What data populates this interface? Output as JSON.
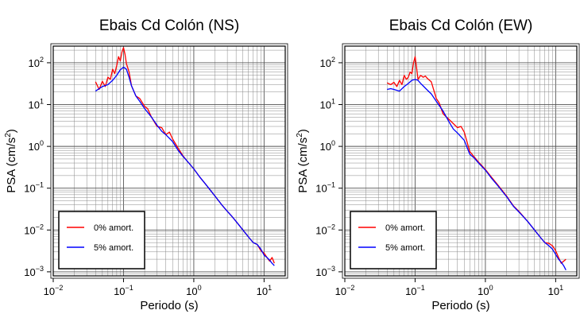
{
  "chart_data": [
    {
      "type": "line",
      "title": "Ebais Cd Colón (NS)",
      "xlabel": "Periodo (s)",
      "ylabel": "PSA (cm/s²)",
      "xscale": "log",
      "yscale": "log",
      "xlim": [
        0.01,
        20
      ],
      "ylim": [
        0.0008,
        250
      ],
      "xticks": [
        0.01,
        0.1,
        1,
        10
      ],
      "yticks": [
        0.001,
        0.01,
        0.1,
        1,
        10,
        100
      ],
      "grid": true,
      "legend_position": "bottom-left",
      "series": [
        {
          "name": "0% amort.",
          "color": "#ff0000",
          "x": [
            0.04,
            0.045,
            0.05,
            0.055,
            0.06,
            0.065,
            0.07,
            0.075,
            0.08,
            0.085,
            0.09,
            0.095,
            0.1,
            0.105,
            0.11,
            0.12,
            0.13,
            0.15,
            0.17,
            0.2,
            0.22,
            0.25,
            0.3,
            0.35,
            0.4,
            0.45,
            0.5,
            0.6,
            0.7,
            0.8,
            1.0,
            1.2,
            1.5,
            2.0,
            2.5,
            3.0,
            3.5,
            4.0,
            5.0,
            6.0,
            7.0,
            8.0,
            9.0,
            10.0,
            11.0,
            12.0,
            13.0,
            14.0
          ],
          "y": [
            35,
            23,
            36,
            27,
            45,
            40,
            70,
            55,
            85,
            140,
            110,
            180,
            230,
            160,
            95,
            60,
            28,
            16,
            14,
            9,
            8,
            5,
            3,
            2.8,
            1.9,
            2.2,
            1.5,
            0.9,
            0.6,
            0.45,
            0.29,
            0.19,
            0.12,
            0.065,
            0.04,
            0.028,
            0.021,
            0.016,
            0.01,
            0.0068,
            0.005,
            0.0045,
            0.0032,
            0.0028,
            0.0022,
            0.0018,
            0.0022,
            0.0016
          ]
        },
        {
          "name": "5% amort.",
          "color": "#0000ff",
          "x": [
            0.04,
            0.045,
            0.05,
            0.06,
            0.07,
            0.08,
            0.09,
            0.1,
            0.11,
            0.12,
            0.13,
            0.15,
            0.17,
            0.2,
            0.25,
            0.3,
            0.35,
            0.4,
            0.5,
            0.6,
            0.7,
            0.8,
            1.0,
            1.2,
            1.5,
            2.0,
            2.5,
            3.0,
            3.5,
            4.0,
            5.0,
            6.0,
            7.0,
            8.0,
            9.0,
            10.0,
            11.0,
            12.0,
            13.0,
            14.0
          ],
          "y": [
            21,
            24,
            27,
            30,
            38,
            50,
            68,
            78,
            70,
            45,
            28,
            16,
            12,
            8,
            5,
            3.2,
            2.3,
            1.9,
            1.3,
            0.8,
            0.58,
            0.45,
            0.29,
            0.19,
            0.12,
            0.065,
            0.04,
            0.028,
            0.021,
            0.016,
            0.01,
            0.0068,
            0.005,
            0.0045,
            0.0035,
            0.0025,
            0.0022,
            0.0019,
            0.0016,
            0.0014
          ]
        }
      ]
    },
    {
      "type": "line",
      "title": "Ebais Cd Colón (EW)",
      "xlabel": "Periodo (s)",
      "ylabel": "PSA (cm/s²)",
      "xscale": "log",
      "yscale": "log",
      "xlim": [
        0.01,
        20
      ],
      "ylim": [
        0.0008,
        250
      ],
      "xticks": [
        0.01,
        0.1,
        1,
        10
      ],
      "yticks": [
        0.001,
        0.01,
        0.1,
        1,
        10,
        100
      ],
      "grid": true,
      "legend_position": "bottom-left",
      "series": [
        {
          "name": "0% amort.",
          "color": "#ff0000",
          "x": [
            0.04,
            0.045,
            0.05,
            0.055,
            0.06,
            0.065,
            0.07,
            0.075,
            0.08,
            0.085,
            0.09,
            0.095,
            0.1,
            0.105,
            0.11,
            0.12,
            0.13,
            0.14,
            0.15,
            0.17,
            0.2,
            0.22,
            0.25,
            0.3,
            0.35,
            0.4,
            0.45,
            0.5,
            0.6,
            0.7,
            0.8,
            1.0,
            1.2,
            1.5,
            2.0,
            2.5,
            3.0,
            4.0,
            5.0,
            6.0,
            7.0,
            8.0,
            9.0,
            10.0,
            11.0,
            12.0,
            13.0,
            14.0
          ],
          "y": [
            33,
            30,
            34,
            27,
            38,
            30,
            50,
            40,
            45,
            60,
            55,
            100,
            140,
            75,
            40,
            50,
            45,
            48,
            42,
            35,
            14,
            11,
            6,
            4.5,
            3.5,
            2.8,
            3.0,
            2.2,
            0.75,
            0.55,
            0.42,
            0.28,
            0.19,
            0.12,
            0.065,
            0.038,
            0.028,
            0.016,
            0.01,
            0.0068,
            0.005,
            0.0048,
            0.0042,
            0.0032,
            0.0022,
            0.0016,
            0.0018,
            0.002
          ]
        },
        {
          "name": "5% amort.",
          "color": "#0000ff",
          "x": [
            0.04,
            0.045,
            0.05,
            0.06,
            0.07,
            0.08,
            0.09,
            0.1,
            0.11,
            0.12,
            0.13,
            0.15,
            0.17,
            0.2,
            0.25,
            0.3,
            0.35,
            0.4,
            0.5,
            0.6,
            0.7,
            0.8,
            1.0,
            1.2,
            1.5,
            2.0,
            2.5,
            3.0,
            4.0,
            5.0,
            6.0,
            7.0,
            8.0,
            9.0,
            10.0,
            11.0,
            12.0,
            13.0,
            14.0
          ],
          "y": [
            23,
            24,
            23,
            21,
            27,
            32,
            38,
            40,
            38,
            32,
            28,
            22,
            18,
            12,
            7,
            4,
            2.6,
            2.1,
            1.4,
            0.65,
            0.52,
            0.4,
            0.27,
            0.18,
            0.115,
            0.063,
            0.037,
            0.027,
            0.016,
            0.01,
            0.0068,
            0.005,
            0.0042,
            0.0035,
            0.0026,
            0.002,
            0.0017,
            0.0014,
            0.0011
          ]
        }
      ]
    }
  ]
}
